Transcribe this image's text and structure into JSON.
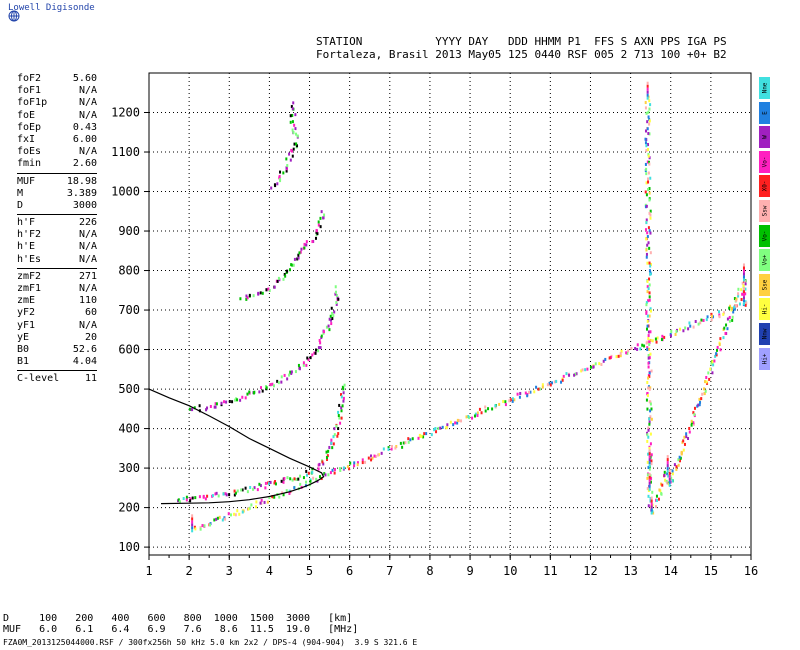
{
  "brand": "Lowell Digisonde",
  "header": {
    "labels_line": "STATION           YYYY DAY   DDD HHMM P1  FFS S AXN PPS IGA PS",
    "values_line": "Fortaleza, Brasil 2013 May05 125 0440 RSF 005 2 713 100 +0+ B2"
  },
  "params": [
    {
      "name": "foF2",
      "value": "5.60"
    },
    {
      "name": "foF1",
      "value": "N/A"
    },
    {
      "name": "foF1p",
      "value": "N/A"
    },
    {
      "name": "foE",
      "value": "N/A"
    },
    {
      "name": "foEp",
      "value": "0.43"
    },
    {
      "name": "fxI",
      "value": "6.00"
    },
    {
      "name": "foEs",
      "value": "N/A"
    },
    {
      "name": "fmin",
      "value": "2.60"
    },
    {
      "sep": true
    },
    {
      "name": "MUF",
      "value": "18.98"
    },
    {
      "name": "M",
      "value": "3.389"
    },
    {
      "name": "D",
      "value": "3000"
    },
    {
      "sep": true
    },
    {
      "name": "h'F",
      "value": "226"
    },
    {
      "name": "h'F2",
      "value": "N/A"
    },
    {
      "name": "h'E",
      "value": "N/A"
    },
    {
      "name": "h'Es",
      "value": "N/A"
    },
    {
      "sep": true
    },
    {
      "name": "zmF2",
      "value": "271"
    },
    {
      "name": "zmF1",
      "value": "N/A"
    },
    {
      "name": "zmE",
      "value": "110"
    },
    {
      "name": "yF2",
      "value": "60"
    },
    {
      "name": "yF1",
      "value": "N/A"
    },
    {
      "name": "yE",
      "value": "20"
    },
    {
      "name": "B0",
      "value": "52.6"
    },
    {
      "name": "B1",
      "value": "4.04"
    },
    {
      "sep": true
    },
    {
      "name": "C-level",
      "value": "11"
    }
  ],
  "bottom": {
    "d_line": "D     100   200   400   600   800  1000  1500  3000   [km]",
    "muf_line": "MUF   6.0   6.1   6.4   6.9   7.6   8.6  11.5  19.0   [MHz]",
    "file_line": "FZA0M_2013125044000.RSF / 300fx256h 50 kHz 5.0 km 2x2 / DPS-4 (904-904)  3.9 S 321.6 E"
  },
  "legend": [
    {
      "label": "Nne",
      "color": "#40e0e0"
    },
    {
      "label": "E",
      "color": "#2080e0"
    },
    {
      "label": "W",
      "color": "#a020c0"
    },
    {
      "label": "Vo-",
      "color": "#ff20c0"
    },
    {
      "label": "X0-",
      "color": "#ff2020"
    },
    {
      "label": "Ssw",
      "color": "#ffb0b0"
    },
    {
      "label": "Vo-",
      "color": "#00c000"
    },
    {
      "label": "Vo+",
      "color": "#80ff80"
    },
    {
      "label": "Sse",
      "color": "#ffd040"
    },
    {
      "label": "Hi-",
      "color": "#ffff40"
    },
    {
      "label": "Nnw",
      "color": "#2040b0"
    },
    {
      "label": "Hi+",
      "color": "#a0a0ff"
    }
  ],
  "chart_data": {
    "type": "scatter",
    "xlabel": "",
    "ylabel": "",
    "xlim": [
      1,
      16
    ],
    "ylim": [
      80,
      1300
    ],
    "xticks": [
      1,
      2,
      3,
      4,
      5,
      6,
      7,
      8,
      9,
      10,
      11,
      12,
      13,
      14,
      15,
      16
    ],
    "yticks": [
      100,
      200,
      300,
      400,
      500,
      600,
      700,
      800,
      900,
      1000,
      1100,
      1200
    ],
    "grid": true,
    "series": [
      {
        "values_xy": [
          [
            1.7,
            222
          ],
          [
            2.0,
            226
          ],
          [
            2.5,
            232
          ],
          [
            3.0,
            240
          ],
          [
            3.5,
            250
          ],
          [
            4.0,
            262
          ],
          [
            4.4,
            272
          ],
          [
            4.8,
            285
          ],
          [
            5.1,
            300
          ],
          [
            5.3,
            318
          ],
          [
            5.45,
            340
          ],
          [
            5.55,
            365
          ],
          [
            5.62,
            390
          ],
          [
            5.7,
            420
          ],
          [
            5.75,
            455
          ],
          [
            5.8,
            490
          ],
          [
            5.85,
            515
          ]
        ]
      },
      {
        "values_xy": [
          [
            2.0,
            452
          ],
          [
            2.5,
            458
          ],
          [
            3.0,
            470
          ],
          [
            3.5,
            490
          ],
          [
            3.8,
            505
          ],
          [
            4.2,
            520
          ],
          [
            4.5,
            540
          ],
          [
            4.8,
            565
          ],
          [
            5.1,
            595
          ],
          [
            5.3,
            630
          ],
          [
            5.45,
            665
          ],
          [
            5.55,
            700
          ],
          [
            5.65,
            735
          ],
          [
            5.7,
            765
          ]
        ]
      },
      {
        "values_xy": [
          [
            3.3,
            730
          ],
          [
            3.7,
            742
          ],
          [
            4.0,
            760
          ],
          [
            4.3,
            785
          ],
          [
            4.5,
            810
          ],
          [
            4.7,
            840
          ],
          [
            4.8,
            860
          ],
          [
            5.05,
            880
          ],
          [
            5.25,
            920
          ],
          [
            5.35,
            960
          ]
        ]
      },
      {
        "values_xy": [
          [
            4.05,
            1015
          ],
          [
            4.2,
            1030
          ],
          [
            4.35,
            1060
          ],
          [
            4.5,
            1090
          ],
          [
            4.65,
            1130
          ],
          [
            4.55,
            1180
          ],
          [
            4.6,
            1230
          ]
        ]
      },
      {
        "values_xy": [
          [
            13.4,
            1240
          ],
          [
            13.45,
            310
          ],
          [
            13.45,
            250
          ],
          [
            13.5,
            190
          ],
          [
            13.9,
            295
          ],
          [
            13.95,
            260
          ],
          [
            15.8,
            780
          ],
          [
            15.8,
            720
          ],
          [
            2.05,
            145
          ]
        ]
      },
      {
        "values_xy": [
          [
            1.3,
            210
          ],
          [
            2.0,
            211
          ],
          [
            2.5,
            212
          ],
          [
            3.0,
            215
          ],
          [
            3.5,
            220
          ],
          [
            4.0,
            228
          ],
          [
            4.5,
            240
          ],
          [
            4.8,
            250
          ],
          [
            5.0,
            258
          ],
          [
            5.2,
            268
          ],
          [
            5.35,
            278
          ],
          [
            5.3,
            288
          ],
          [
            5.0,
            303
          ],
          [
            4.5,
            325
          ],
          [
            4.0,
            350
          ],
          [
            3.5,
            375
          ],
          [
            3.0,
            405
          ],
          [
            2.5,
            432
          ],
          [
            2.0,
            458
          ],
          [
            1.5,
            478
          ],
          [
            1.0,
            500
          ]
        ]
      }
    ]
  }
}
